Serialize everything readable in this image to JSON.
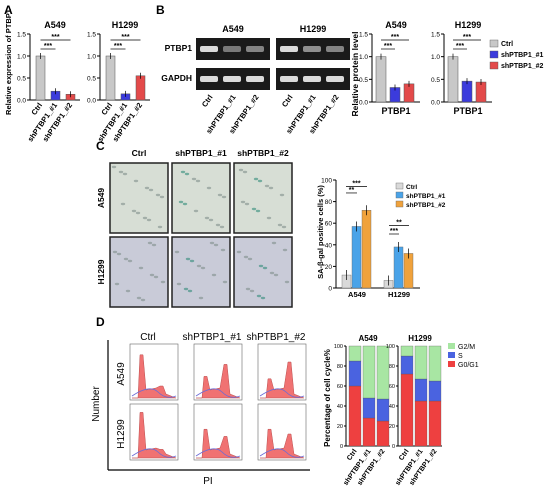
{
  "panels": {
    "A": {
      "label": "A",
      "ylabel": "Relative expression of PTBP1",
      "charts": [
        {
          "title": "A549",
          "categories": [
            "Ctrl",
            "shPTBP1_#1",
            "shPTBP1_#2"
          ],
          "values": [
            1.0,
            0.2,
            0.13
          ],
          "yticks": [
            "0.0",
            "0.5",
            "1.0",
            "1.5"
          ],
          "ylim": [
            0,
            1.5
          ],
          "colors": [
            "#c8c8c8",
            "#3b3bdc",
            "#e34a4a"
          ],
          "sig": [
            "***",
            "***"
          ]
        },
        {
          "title": "H1299",
          "categories": [
            "Ctrl",
            "shPTBP1_#1",
            "shPTBP1_#2"
          ],
          "values": [
            1.0,
            0.14,
            0.55
          ],
          "yticks": [
            "0.0",
            "0.5",
            "1.0",
            "1.5"
          ],
          "ylim": [
            0,
            1.5
          ],
          "colors": [
            "#c8c8c8",
            "#3b3bdc",
            "#e34a4a"
          ],
          "sig": [
            "***",
            "***"
          ]
        }
      ]
    },
    "B": {
      "label": "B",
      "blot": {
        "groups": [
          "A549",
          "H1299"
        ],
        "rows": [
          "PTBP1",
          "GAPDH"
        ],
        "lanes": [
          "Ctrl",
          "shPTBP1_#1",
          "shPTBP1_#2",
          "Ctrl",
          "shPTBP1_#1",
          "shPTBP1_#2"
        ]
      },
      "ylabel": "Relative protein level",
      "legend": [
        "Ctrl",
        "shPTBP1_#1",
        "shPTBP1_#2"
      ],
      "legend_colors": [
        "#c8c8c8",
        "#3b3bdc",
        "#e34a4a"
      ],
      "charts": [
        {
          "title": "A549",
          "xlabel": "PTBP1",
          "values": [
            1.0,
            0.32,
            0.4
          ],
          "yticks": [
            "0.0",
            "0.5",
            "1.0",
            "1.5"
          ],
          "ylim": [
            0,
            1.5
          ],
          "sig": [
            "***",
            "***"
          ]
        },
        {
          "title": "H1299",
          "xlabel": "PTBP1",
          "values": [
            1.0,
            0.46,
            0.44
          ],
          "yticks": [
            "0.0",
            "0.5",
            "1.0",
            "1.5"
          ],
          "ylim": [
            0,
            1.5
          ],
          "sig": [
            "***",
            "***"
          ]
        }
      ]
    },
    "C": {
      "label": "C",
      "columns": [
        "Ctrl",
        "shPTBP1_#1",
        "shPTBP1_#2"
      ],
      "rows": [
        "A549",
        "H1299"
      ],
      "ylabel": "SA-β-gal positive cells (%)",
      "legend": [
        "Ctrl",
        "shPTBP1_#1",
        "shPTBP1_#2"
      ],
      "legend_colors": [
        "#d9d9d9",
        "#4aa3e8",
        "#f0a23c"
      ],
      "chart": {
        "categories": [
          "A549",
          "H1299"
        ],
        "series": [
          {
            "name": "Ctrl",
            "values": [
              12,
              7
            ]
          },
          {
            "name": "shPTBP1_#1",
            "values": [
              57,
              38
            ]
          },
          {
            "name": "shPTBP1_#2",
            "values": [
              72,
              32
            ]
          }
        ],
        "yticks": [
          "0",
          "20",
          "40",
          "60",
          "80",
          "100"
        ],
        "ylim": [
          0,
          100
        ],
        "sig": [
          "**",
          "***",
          "***",
          "**"
        ]
      }
    },
    "D": {
      "label": "D",
      "columns": [
        "Ctrl",
        "shPTBP1_#1",
        "shPTBP1_#2"
      ],
      "rows": [
        "A549",
        "H1299"
      ],
      "ylabel": "Number",
      "xlabel": "PI",
      "chart": {
        "ylabel": "Percentage of cell cycle%",
        "groups": [
          "A549",
          "H1299"
        ],
        "categories": [
          "Ctrl",
          "shPTBP1_#1",
          "shPTBP1_#2"
        ],
        "legend": [
          "G2/M",
          "S",
          "G0/G1"
        ],
        "colors": {
          "G2/M": "#a8e6a3",
          "S": "#4a63e0",
          "G0/G1": "#ee4040"
        },
        "yticks": [
          "0",
          "20",
          "40",
          "60",
          "80",
          "100"
        ],
        "ylim": [
          0,
          100
        ],
        "stacks": {
          "A549": [
            {
              "G0G1": 60,
              "S": 25,
              "G2M": 15
            },
            {
              "G0G1": 28,
              "S": 20,
              "G2M": 52
            },
            {
              "G0G1": 25,
              "S": 22,
              "G2M": 53
            }
          ],
          "H1299": [
            {
              "G0G1": 72,
              "S": 18,
              "G2M": 10
            },
            {
              "G0G1": 45,
              "S": 22,
              "G2M": 33
            },
            {
              "G0G1": 45,
              "S": 20,
              "G2M": 35
            }
          ]
        }
      }
    }
  }
}
